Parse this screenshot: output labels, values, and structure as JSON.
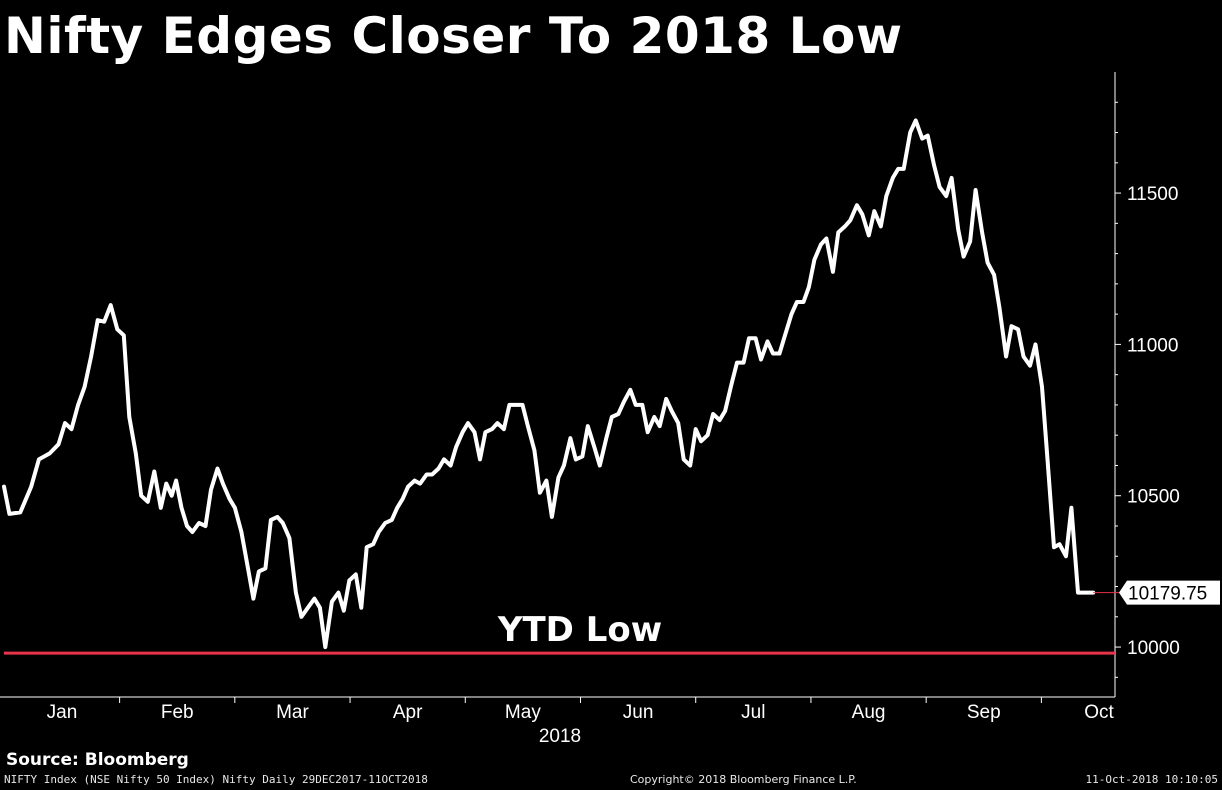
{
  "title": "Nifty Edges Closer To 2018 Low",
  "source": "Source: Bloomberg",
  "footer": {
    "left": "NIFTY Index (NSE Nifty 50 Index) Nifty  Daily 29DEC2017-11OCT2018",
    "center": "Copyright© 2018 Bloomberg Finance L.P.",
    "right": "11-Oct-2018 10:10:05"
  },
  "colors": {
    "background": "#000000",
    "line": "#ffffff",
    "ytd_low": "#e8334a"
  },
  "chart_data": {
    "type": "line",
    "title": "Nifty Edges Closer To 2018 Low",
    "xlabel": "2018",
    "ylabel": "",
    "x_ticks": [
      "Jan",
      "Feb",
      "Mar",
      "Apr",
      "May",
      "Jun",
      "Jul",
      "Aug",
      "Sep",
      "Oct"
    ],
    "y_ticks": [
      10000,
      10500,
      11000,
      11500
    ],
    "ylim": [
      9835,
      11900
    ],
    "xlim": [
      0,
      1.02
    ],
    "grid": false,
    "last_value_label": "10179.75",
    "ytd_low": {
      "label": "YTD Low",
      "value": 9980
    },
    "series": [
      {
        "values": [
          [
            0.0,
            10530
          ],
          [
            0.005,
            10440
          ],
          [
            0.015,
            10445
          ],
          [
            0.025,
            10530
          ],
          [
            0.032,
            10620
          ],
          [
            0.042,
            10640
          ],
          [
            0.05,
            10670
          ],
          [
            0.056,
            10740
          ],
          [
            0.062,
            10720
          ],
          [
            0.068,
            10800
          ],
          [
            0.074,
            10860
          ],
          [
            0.08,
            10960
          ],
          [
            0.086,
            11080
          ],
          [
            0.092,
            11075
          ],
          [
            0.098,
            11130
          ],
          [
            0.104,
            11050
          ],
          [
            0.11,
            11030
          ],
          [
            0.115,
            10760
          ],
          [
            0.121,
            10640
          ],
          [
            0.126,
            10500
          ],
          [
            0.132,
            10480
          ],
          [
            0.138,
            10580
          ],
          [
            0.144,
            10460
          ],
          [
            0.149,
            10540
          ],
          [
            0.154,
            10500
          ],
          [
            0.158,
            10550
          ],
          [
            0.163,
            10460
          ],
          [
            0.168,
            10400
          ],
          [
            0.173,
            10380
          ],
          [
            0.179,
            10410
          ],
          [
            0.185,
            10400
          ],
          [
            0.19,
            10520
          ],
          [
            0.196,
            10590
          ],
          [
            0.201,
            10540
          ],
          [
            0.207,
            10490
          ],
          [
            0.212,
            10460
          ],
          [
            0.218,
            10380
          ],
          [
            0.224,
            10260
          ],
          [
            0.229,
            10160
          ],
          [
            0.234,
            10250
          ],
          [
            0.24,
            10260
          ],
          [
            0.245,
            10420
          ],
          [
            0.251,
            10430
          ],
          [
            0.256,
            10410
          ],
          [
            0.262,
            10360
          ],
          [
            0.268,
            10180
          ],
          [
            0.273,
            10100
          ],
          [
            0.279,
            10130
          ],
          [
            0.285,
            10160
          ],
          [
            0.29,
            10130
          ],
          [
            0.295,
            10000
          ],
          [
            0.301,
            10150
          ],
          [
            0.307,
            10180
          ],
          [
            0.312,
            10120
          ],
          [
            0.317,
            10220
          ],
          [
            0.323,
            10240
          ],
          [
            0.328,
            10130
          ],
          [
            0.333,
            10330
          ],
          [
            0.339,
            10340
          ],
          [
            0.344,
            10380
          ],
          [
            0.35,
            10410
          ],
          [
            0.356,
            10420
          ],
          [
            0.361,
            10460
          ],
          [
            0.366,
            10490
          ],
          [
            0.371,
            10530
          ],
          [
            0.377,
            10550
          ],
          [
            0.382,
            10540
          ],
          [
            0.388,
            10570
          ],
          [
            0.393,
            10570
          ],
          [
            0.399,
            10590
          ],
          [
            0.404,
            10620
          ],
          [
            0.41,
            10600
          ],
          [
            0.415,
            10660
          ],
          [
            0.421,
            10710
          ],
          [
            0.426,
            10740
          ],
          [
            0.432,
            10710
          ],
          [
            0.437,
            10620
          ],
          [
            0.442,
            10710
          ],
          [
            0.448,
            10720
          ],
          [
            0.453,
            10740
          ],
          [
            0.459,
            10720
          ],
          [
            0.464,
            10800
          ],
          [
            0.47,
            10800
          ],
          [
            0.476,
            10800
          ],
          [
            0.481,
            10730
          ],
          [
            0.487,
            10650
          ],
          [
            0.492,
            10510
          ],
          [
            0.498,
            10550
          ],
          [
            0.503,
            10430
          ],
          [
            0.509,
            10560
          ],
          [
            0.514,
            10600
          ],
          [
            0.52,
            10690
          ],
          [
            0.525,
            10620
          ],
          [
            0.531,
            10630
          ],
          [
            0.536,
            10730
          ],
          [
            0.542,
            10660
          ],
          [
            0.547,
            10600
          ],
          [
            0.553,
            10690
          ],
          [
            0.558,
            10760
          ],
          [
            0.564,
            10770
          ],
          [
            0.569,
            10810
          ],
          [
            0.575,
            10850
          ],
          [
            0.58,
            10800
          ],
          [
            0.586,
            10800
          ],
          [
            0.591,
            10710
          ],
          [
            0.597,
            10760
          ],
          [
            0.602,
            10730
          ],
          [
            0.608,
            10820
          ],
          [
            0.613,
            10780
          ],
          [
            0.619,
            10740
          ],
          [
            0.624,
            10620
          ],
          [
            0.63,
            10600
          ],
          [
            0.635,
            10720
          ],
          [
            0.64,
            10680
          ],
          [
            0.646,
            10700
          ],
          [
            0.651,
            10770
          ],
          [
            0.657,
            10750
          ],
          [
            0.662,
            10780
          ],
          [
            0.668,
            10870
          ],
          [
            0.673,
            10940
          ],
          [
            0.679,
            10940
          ],
          [
            0.684,
            11020
          ],
          [
            0.69,
            11020
          ],
          [
            0.695,
            10950
          ],
          [
            0.701,
            11010
          ],
          [
            0.706,
            10970
          ],
          [
            0.712,
            10970
          ],
          [
            0.717,
            11030
          ],
          [
            0.723,
            11100
          ],
          [
            0.728,
            11140
          ],
          [
            0.734,
            11140
          ],
          [
            0.739,
            11190
          ],
          [
            0.744,
            11280
          ],
          [
            0.75,
            11330
          ],
          [
            0.755,
            11350
          ],
          [
            0.761,
            11240
          ],
          [
            0.766,
            11370
          ],
          [
            0.772,
            11390
          ],
          [
            0.777,
            11410
          ],
          [
            0.783,
            11460
          ],
          [
            0.788,
            11430
          ],
          [
            0.794,
            11360
          ],
          [
            0.799,
            11440
          ],
          [
            0.805,
            11390
          ],
          [
            0.81,
            11490
          ],
          [
            0.816,
            11550
          ],
          [
            0.821,
            11580
          ],
          [
            0.826,
            11580
          ],
          [
            0.832,
            11700
          ],
          [
            0.837,
            11740
          ],
          [
            0.843,
            11680
          ],
          [
            0.848,
            11690
          ],
          [
            0.854,
            11590
          ],
          [
            0.859,
            11520
          ],
          [
            0.865,
            11490
          ],
          [
            0.87,
            11550
          ],
          [
            0.876,
            11380
          ],
          [
            0.881,
            11290
          ],
          [
            0.887,
            11340
          ],
          [
            0.892,
            11510
          ],
          [
            0.898,
            11370
          ],
          [
            0.903,
            11270
          ],
          [
            0.909,
            11230
          ],
          [
            0.914,
            11120
          ],
          [
            0.92,
            10960
          ],
          [
            0.925,
            11060
          ],
          [
            0.931,
            11050
          ],
          [
            0.936,
            10960
          ],
          [
            0.942,
            10930
          ],
          [
            0.947,
            11000
          ],
          [
            0.953,
            10860
          ],
          [
            0.958,
            10620
          ],
          [
            0.964,
            10330
          ],
          [
            0.969,
            10340
          ],
          [
            0.975,
            10300
          ],
          [
            0.98,
            10460
          ],
          [
            0.986,
            10180
          ],
          [
            1.0,
            10180
          ]
        ]
      }
    ]
  }
}
